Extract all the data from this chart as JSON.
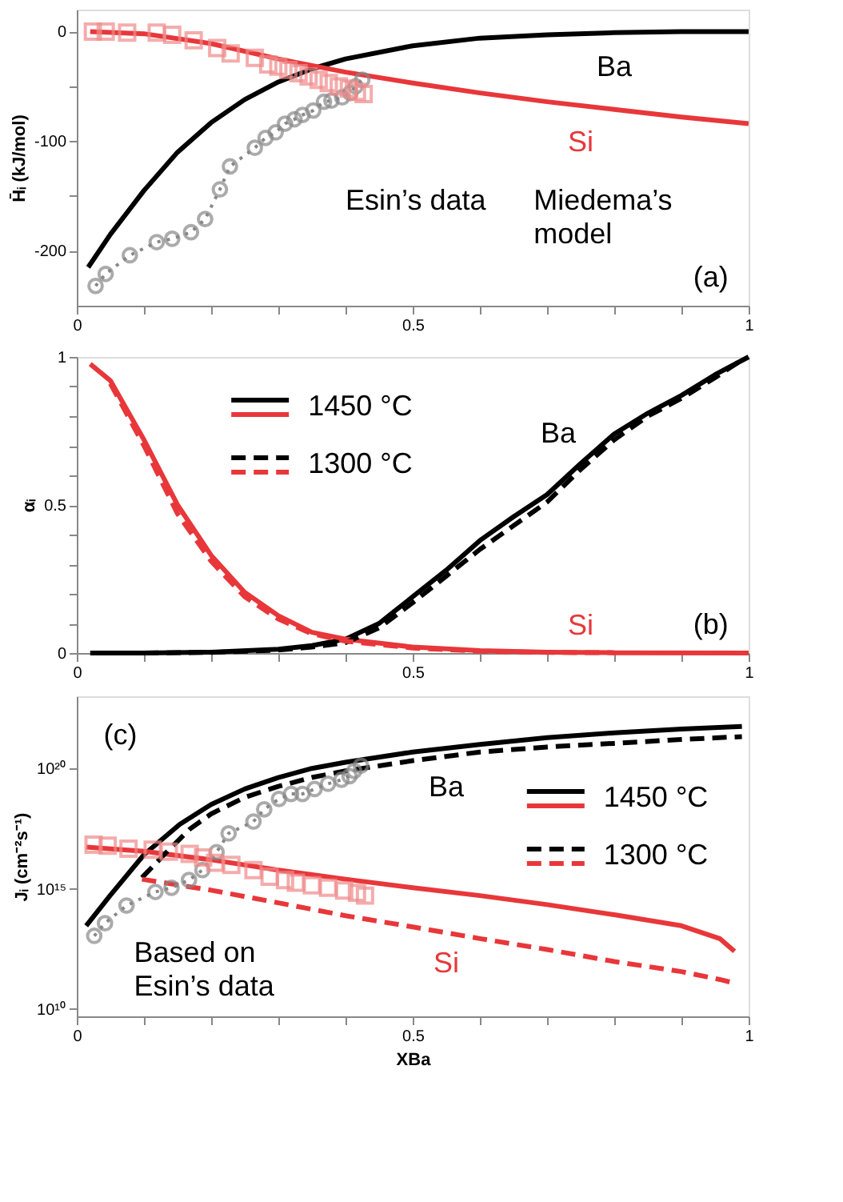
{
  "chart_data": [
    {
      "type": "line",
      "xlim": [
        0,
        1
      ],
      "xticks": [
        0,
        {
          "value": 0.1,
          "label": null
        },
        {
          "value": 0.2,
          "label": null
        },
        {
          "value": 0.3,
          "label": null
        },
        {
          "value": 0.4,
          "label": null
        },
        0.5,
        {
          "value": 0.6,
          "label": null
        },
        {
          "value": 0.7,
          "label": null
        },
        {
          "value": 0.8,
          "label": null
        },
        {
          "value": 0.9,
          "label": null
        },
        1
      ],
      "ylim": [
        -250,
        20
      ],
      "yticks": [
        -200,
        {
          "value": -150,
          "label": null
        },
        -100,
        {
          "value": -50,
          "label": null
        },
        0
      ],
      "ylabel": "H̄ᵢ (kJ/mol)",
      "series": [
        {
          "color": "#000000",
          "line_style": "solid",
          "x": [
            0.017,
            0.05,
            0.1,
            0.15,
            0.2,
            0.25,
            0.3,
            0.35,
            0.4,
            0.5,
            0.6,
            0.7,
            0.8,
            0.9,
            1
          ],
          "values": [
            -215,
            -185,
            -145,
            -110,
            -83,
            -62,
            -46,
            -34,
            -25,
            -13,
            -6,
            -3,
            -1,
            0,
            0
          ]
        },
        {
          "color": "#e8373a",
          "line_style": "solid",
          "x": [
            0.02,
            0.1,
            0.2,
            0.3,
            0.4,
            0.5,
            0.6,
            0.7,
            0.8,
            0.9,
            1
          ],
          "values": [
            0,
            -2,
            -11,
            -25,
            -37,
            -47,
            -56,
            -64,
            -71,
            -78,
            -84
          ]
        },
        {
          "color": "#888888",
          "line_style": "dotted",
          "marker": "circle",
          "x": [
            0.028,
            0.043,
            0.079,
            0.119,
            0.142,
            0.17,
            0.191,
            0.213,
            0.228,
            0.265,
            0.281,
            0.296,
            0.31,
            0.324,
            0.336,
            0.352,
            0.368,
            0.379,
            0.395,
            0.407,
            0.415,
            0.425
          ],
          "values": [
            -232,
            -221,
            -204,
            -192,
            -189,
            -183,
            -171,
            -144,
            -123,
            -106,
            -97,
            -92,
            -84,
            -80,
            -76,
            -72,
            -64,
            -63,
            -60,
            -56,
            -50,
            -44
          ]
        },
        {
          "type": "scatter",
          "color": "#f08a8a",
          "marker": "square",
          "x": [
            0.024,
            0.043,
            0.075,
            0.119,
            0.142,
            0.174,
            0.209,
            0.229,
            0.265,
            0.285,
            0.3,
            0.315,
            0.33,
            0.345,
            0.36,
            0.375,
            0.39,
            0.405,
            0.417,
            0.427
          ],
          "values": [
            0,
            0,
            -1,
            -1,
            -3,
            -8,
            -15,
            -20,
            -24,
            -30,
            -32,
            -35,
            -38,
            -41,
            -44,
            -47,
            -50,
            -52,
            -55,
            -57
          ]
        }
      ],
      "annotations": [
        {
          "text": "Ba",
          "x": 0.8,
          "y": -1
        },
        {
          "text": "Si",
          "x": 0.75,
          "y": -67
        },
        "Esin’s data",
        "Miedema’s model",
        "(a)"
      ]
    },
    {
      "type": "line",
      "xlim": [
        0,
        1
      ],
      "xticks": [
        0,
        {
          "value": 0.1,
          "label": null
        },
        {
          "value": 0.2,
          "label": null
        },
        {
          "value": 0.3,
          "label": null
        },
        {
          "value": 0.4,
          "label": null
        },
        0.5,
        {
          "value": 0.6,
          "label": null
        },
        {
          "value": 0.7,
          "label": null
        },
        {
          "value": 0.8,
          "label": null
        },
        {
          "value": 0.9,
          "label": null
        },
        1
      ],
      "ylim": [
        0,
        1
      ],
      "yticks": [
        0,
        {
          "value": 0.1,
          "label": null
        },
        {
          "value": 0.2,
          "label": null
        },
        {
          "value": 0.3,
          "label": null
        },
        {
          "value": 0.4,
          "label": null
        },
        0.5,
        {
          "value": 0.6,
          "label": null
        },
        {
          "value": 0.7,
          "label": null
        },
        {
          "value": 0.8,
          "label": null
        },
        {
          "value": 0.9,
          "label": null
        },
        1
      ],
      "ylabel": "αᵢ",
      "legend": "top left",
      "series": [
        {
          "name": "1450 °C",
          "color": "#000000",
          "line_style": "solid",
          "x": [
            0.02,
            0.1,
            0.2,
            0.3,
            0.35,
            0.4,
            0.45,
            0.5,
            0.55,
            0.6,
            0.65,
            0.7,
            0.75,
            0.8,
            0.85,
            0.9,
            0.95,
            1
          ],
          "values": [
            0,
            0,
            0.003,
            0.013,
            0.025,
            0.047,
            0.1,
            0.19,
            0.28,
            0.38,
            0.46,
            0.535,
            0.64,
            0.74,
            0.81,
            0.87,
            0.94,
            1.0
          ]
        },
        {
          "color": "#e8373a",
          "line_style": "solid",
          "x": [
            0.02,
            0.05,
            0.1,
            0.15,
            0.2,
            0.25,
            0.3,
            0.35,
            0.4,
            0.5,
            0.6,
            0.7,
            0.8,
            1
          ],
          "values": [
            0.976,
            0.92,
            0.72,
            0.5,
            0.33,
            0.205,
            0.126,
            0.07,
            0.047,
            0.02,
            0.008,
            0.003,
            0.001,
            0
          ]
        },
        {
          "name": "1300 °C",
          "color": "#000000",
          "line_style": "dashed",
          "x": [
            0.1,
            0.2,
            0.3,
            0.35,
            0.4,
            0.45,
            0.5,
            0.55,
            0.6,
            0.65,
            0.7,
            0.75,
            0.8,
            0.85,
            0.9,
            0.95,
            0.99
          ],
          "values": [
            0,
            0.002,
            0.01,
            0.02,
            0.035,
            0.085,
            0.17,
            0.26,
            0.35,
            0.43,
            0.51,
            0.62,
            0.72,
            0.8,
            0.86,
            0.93,
            0.99
          ]
        },
        {
          "color": "#e8373a",
          "line_style": "dashed",
          "x": [
            0.05,
            0.1,
            0.15,
            0.2,
            0.25,
            0.3,
            0.35,
            0.4,
            0.5,
            0.6,
            0.7,
            0.8
          ],
          "values": [
            0.91,
            0.7,
            0.47,
            0.31,
            0.19,
            0.115,
            0.065,
            0.04,
            0.017,
            0.006,
            0.002,
            0.001
          ]
        }
      ],
      "annotations": [
        {
          "text": "Ba",
          "x": 0.75,
          "y": 0.64
        },
        {
          "text": "Si",
          "x": 0.75,
          "y": 0.003
        },
        "(b)"
      ]
    },
    {
      "type": "line",
      "log": true,
      "xlim": [
        0,
        1
      ],
      "xticks": [
        0,
        {
          "value": 0.1,
          "label": null
        },
        {
          "value": 0.2,
          "label": null
        },
        {
          "value": 0.3,
          "label": null
        },
        {
          "value": 0.4,
          "label": null
        },
        0.5,
        {
          "value": 0.6,
          "label": null
        },
        {
          "value": 0.7,
          "label": null
        },
        {
          "value": 0.8,
          "label": null
        },
        {
          "value": 0.9,
          "label": null
        },
        1
      ],
      "ylim": [
        5000000000.0,
        1e+23
      ],
      "yticks": [
        {
          "value": 10000000000.0,
          "label": "10¹⁰"
        },
        {
          "value": 1000000000000000.0,
          "label": "10¹⁵"
        },
        {
          "value": 1e+20,
          "label": "10²⁰"
        }
      ],
      "xlabel": "XBa",
      "ylabel": "Jᵢ (cm⁻²s⁻¹)",
      "legend": "right",
      "series": [
        {
          "name": "1450 °C",
          "color": "#000000",
          "line_style": "solid",
          "x": [
            0.014,
            0.05,
            0.1,
            0.153,
            0.2,
            0.25,
            0.3,
            0.35,
            0.4,
            0.5,
            0.6,
            0.7,
            0.8,
            0.9,
            0.99
          ],
          "values": [
            29000000000000.0,
            540000000000000.0,
            2.6e+16,
            4.7e+17,
            3.2e+18,
            1.4e+19,
            4.2e+19,
            1e+20,
            1.8e+20,
            4.8e+20,
            1e+21,
            1.9e+21,
            3e+21,
            4.3e+21,
            5.6e+21
          ]
        },
        {
          "color": "#e8373a",
          "line_style": "solid",
          "x": [
            0.014,
            0.1,
            0.2,
            0.3,
            0.4,
            0.5,
            0.6,
            0.7,
            0.8,
            0.9,
            0.957,
            0.979
          ],
          "values": [
            5.4e+16,
            3.6e+16,
            1.6e+16,
            6000000000000000.0,
            2500000000000000.0,
            1100000000000000.0,
            520000000000000.0,
            220000000000000.0,
            83000000000000.0,
            29000000000000.0,
            8500000000000.0,
            2500000000000.0
          ]
        },
        {
          "name": "1300 °C",
          "color": "#000000",
          "line_style": "dashed",
          "x": [
            0.097,
            0.13,
            0.168,
            0.2,
            0.25,
            0.3,
            0.35,
            0.4,
            0.5,
            0.6,
            0.7,
            0.8,
            0.9,
            0.99
          ],
          "values": [
            2900000000000000.0,
            2.6e+16,
            3e+17,
            1.3e+18,
            6.3e+18,
            1.8e+19,
            4.2e+19,
            7.9e+19,
            2.1e+20,
            4.8e+20,
            7.8e+20,
            1.1e+21,
            1.6e+21,
            2.1e+21
          ]
        },
        {
          "color": "#e8373a",
          "line_style": "dashed",
          "x": [
            0.097,
            0.2,
            0.3,
            0.4,
            0.5,
            0.6,
            0.7,
            0.8,
            0.9,
            0.957,
            0.979
          ],
          "values": [
            2500000000000000.0,
            870000000000000.0,
            260000000000000.0,
            76000000000000.0,
            26000000000000.0,
            8500000000000.0,
            3000000000000.0,
            950000000000.0,
            360000000000.0,
            170000000000.0,
            120000000000.0
          ]
        },
        {
          "color": "#888888",
          "line_style": "dotted",
          "marker": "circle",
          "x": [
            0.026,
            0.042,
            0.074,
            0.117,
            0.141,
            0.167,
            0.187,
            0.208,
            0.226,
            0.263,
            0.279,
            0.301,
            0.319,
            0.336,
            0.354,
            0.374,
            0.394,
            0.406,
            0.413,
            0.423
          ],
          "values": [
            11000000000000.0,
            37000000000000.0,
            200000000000000.0,
            740000000000000.0,
            1100000000000000.0,
            2300000000000000.0,
            6000000000000000.0,
            3.3e+16,
            2e+17,
            6.2e+17,
            2e+18,
            5.4e+18,
            8.7e+18,
            8.7e+18,
            1.4e+19,
            2.3e+19,
            3.4e+19,
            4.8e+19,
            7.9e+19,
            1.3e+20
          ]
        },
        {
          "type": "scatter",
          "color": "#f08a8a",
          "marker": "square",
          "x": [
            0.025,
            0.046,
            0.077,
            0.113,
            0.137,
            0.168,
            0.188,
            0.206,
            0.23,
            0.263,
            0.287,
            0.31,
            0.326,
            0.35,
            0.374,
            0.398,
            0.417,
            0.429
          ],
          "values": [
            6.8e+16,
            6.2e+16,
            4.6e+16,
            4.2e+16,
            3.5e+16,
            2.8e+16,
            2e+16,
            1.2e+16,
            9800000000000000.0,
            6000000000000000.0,
            3200000000000000.0,
            2300000000000000.0,
            1800000000000000.0,
            1400000000000000.0,
            1100000000000000.0,
            850000000000000.0,
            680000000000000.0,
            520000000000000.0
          ]
        }
      ],
      "annotations": [
        {
          "text": "Ba",
          "x": 0.55,
          "y": 3.3e+20
        },
        {
          "text": "Si",
          "x": 0.55,
          "y": 15000000000000.0
        },
        "(c)",
        "Based on Esin’s data"
      ]
    }
  ]
}
